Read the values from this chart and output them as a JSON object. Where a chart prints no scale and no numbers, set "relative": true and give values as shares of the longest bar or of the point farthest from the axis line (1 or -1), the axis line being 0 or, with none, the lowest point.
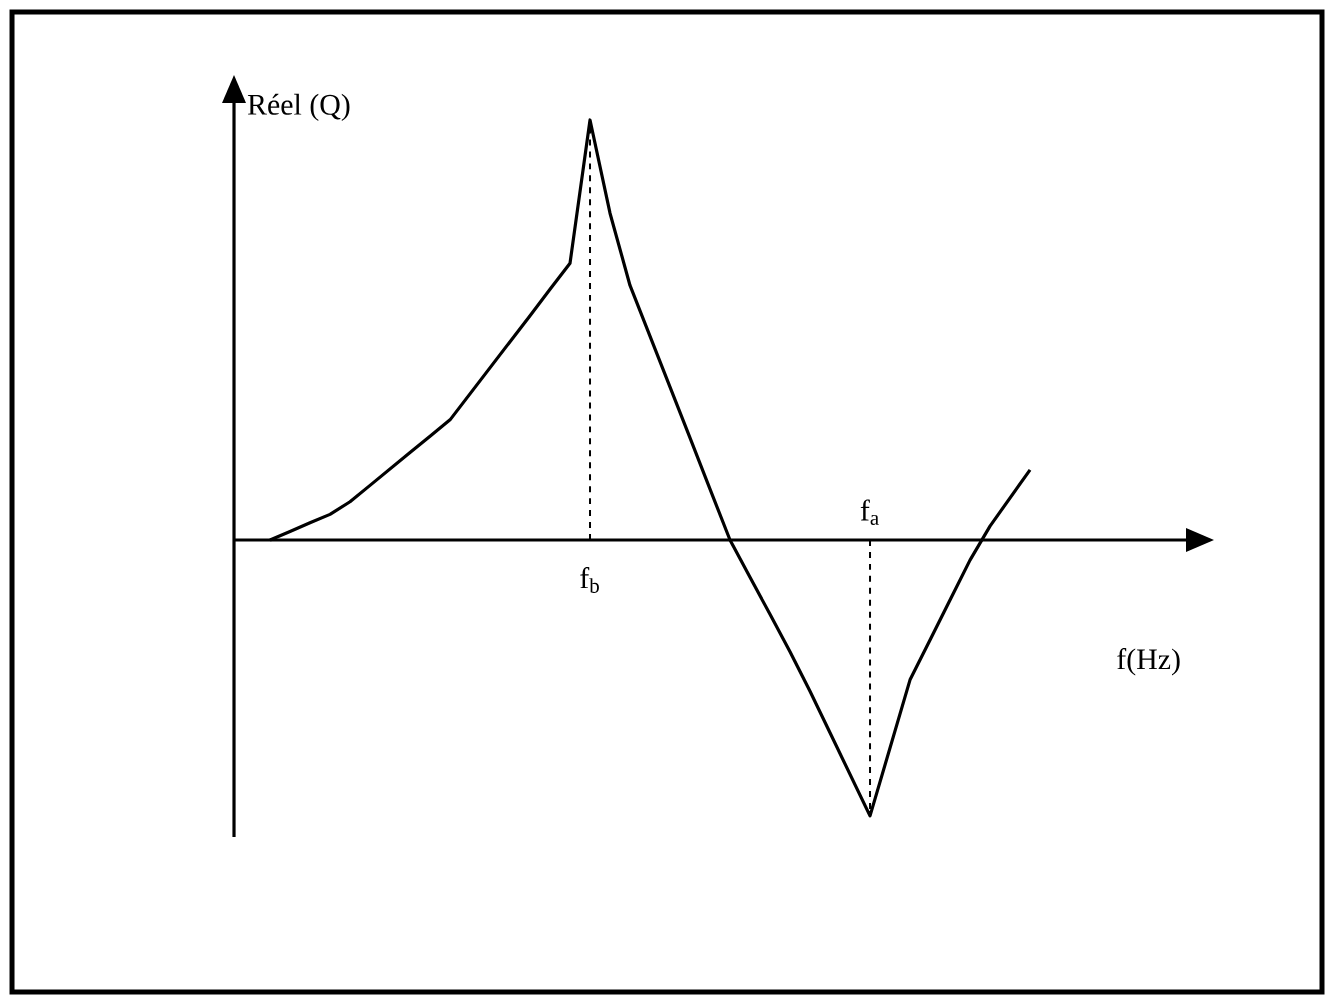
{
  "chart_data": {
    "type": "line",
    "relative": true,
    "ylabel": "Réel (Q)",
    "xlabel": "f(Hz)",
    "categories": [
      null,
      null,
      null,
      null,
      null,
      null,
      null,
      null,
      null,
      null,
      null,
      null,
      null,
      null,
      null,
      null,
      "f$_{b}$",
      null,
      null,
      null,
      null,
      null,
      null,
      null,
      null,
      null,
      null,
      null,
      null,
      null,
      "f$_{a}$",
      null,
      null,
      null,
      null,
      null,
      null,
      null,
      null
    ],
    "values": [
      0,
      0.02,
      0.041,
      0.061,
      0.091,
      0.13,
      0.169,
      0.208,
      0.247,
      0.286,
      0.348,
      0.41,
      0.472,
      0.534,
      0.597,
      0.659,
      1,
      0.778,
      0.606,
      0.485,
      0.364,
      0.243,
      0.121,
      0,
      -0.089,
      -0.177,
      -0.266,
      -0.36,
      -0.459,
      -0.558,
      -0.657,
      -0.495,
      -0.333,
      -0.238,
      -0.143,
      -0.048,
      0.033,
      0.1,
      0.167
    ],
    "color": "#000000",
    "line_style": "solid",
    "ref_lines": [
      {
        "axis": "x",
        "value": "f$_{b}$",
        "line_style": "dashed"
      },
      {
        "axis": "x",
        "value": "f$_{a}$",
        "line_style": "dashed"
      }
    ]
  }
}
